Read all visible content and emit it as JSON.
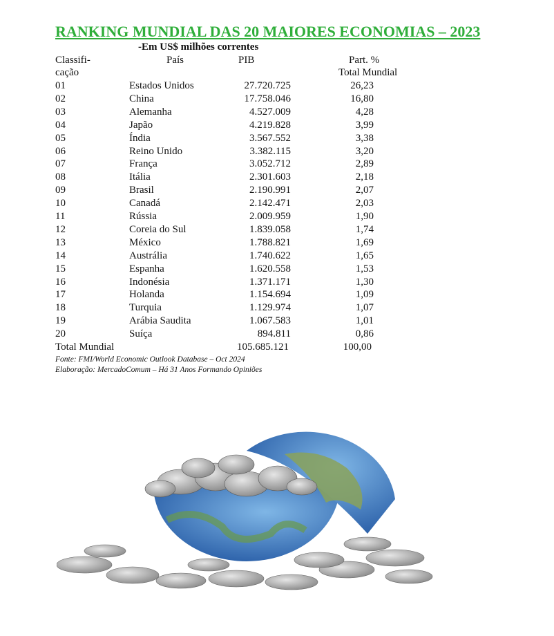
{
  "header": {
    "title": "RANKING MUNDIAL DAS 20 MAIORES ECONOMIAS – 2023",
    "subtitle": "-Em US$ milhões correntes"
  },
  "table": {
    "headers": [
      "Classifi-",
      "cação",
      "País",
      "PIB",
      "Part. %",
      "Total Mundial"
    ],
    "rows": [
      [
        "01",
        "Estados Unidos",
        "27.720.725",
        "26,23"
      ],
      [
        "02",
        "China",
        "17.758.046",
        "16,80"
      ],
      [
        "03",
        "Alemanha",
        "4.527.009",
        "4,28"
      ],
      [
        "04",
        "Japão",
        "4.219.828",
        "3,99"
      ],
      [
        "05",
        "Índia",
        "3.567.552",
        "3,38"
      ],
      [
        "06",
        "Reino Unido",
        "3.382.115",
        "3,20"
      ],
      [
        "07",
        "França",
        "3.052.712",
        "2,89"
      ],
      [
        "08",
        "Itália",
        "2.301.603",
        "2,18"
      ],
      [
        "09",
        "Brasil",
        "2.190.991",
        "2,07"
      ],
      [
        "10",
        "Canadá",
        "2.142.471",
        "2,03"
      ],
      [
        "11",
        "Rússia",
        "2.009.959",
        "1,90"
      ],
      [
        "12",
        "Coreia do Sul",
        "1.839.058",
        "1,74"
      ],
      [
        "13",
        "México",
        "1.788.821",
        "1,69"
      ],
      [
        "14",
        "Austrália",
        "1.740.622",
        "1,65"
      ],
      [
        "15",
        "Espanha",
        "1.620.558",
        "1,53"
      ],
      [
        "16",
        "Indonésia",
        "1.371.171",
        "1,30"
      ],
      [
        "17",
        "Holanda",
        "1.154.694",
        "1,09"
      ],
      [
        "18",
        "Turquia",
        "1.129.974",
        "1,07"
      ],
      [
        "19",
        "Arábia Saudita",
        "1.067.583",
        "1,01"
      ],
      [
        "20",
        "Suíça",
        "894.811",
        "0,86"
      ]
    ],
    "total": [
      "Total Mundial",
      "105.685.121",
      "100,00"
    ]
  },
  "footer": {
    "source": "Fonte: FMI/World Economic Outlook Database – Oct 2024",
    "credit": "Elaboração: MercadoComum – Há 31 Anos Formando Opiniões"
  }
}
